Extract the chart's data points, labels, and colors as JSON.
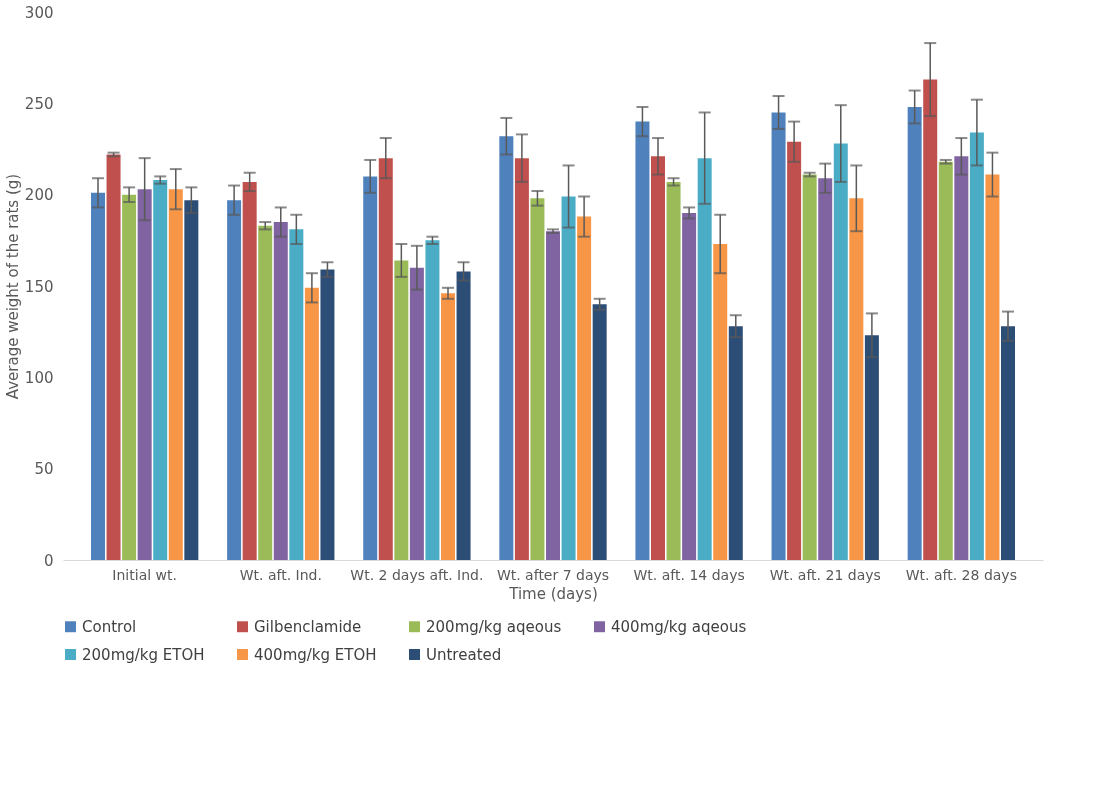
{
  "chart_data": {
    "type": "bar",
    "xlabel": "Time (days)",
    "ylabel": "Average weight of the rats (g)",
    "categories": [
      "Initial wt.",
      "Wt. aft. Ind.",
      "Wt. 2 days aft. Ind.",
      "Wt. after 7 days",
      "Wt. aft. 14 days",
      "Wt. aft. 21 days",
      "Wt. aft. 28 days"
    ],
    "ylim": [
      0,
      300
    ],
    "yticks": [
      0,
      50,
      100,
      150,
      200,
      250,
      300
    ],
    "grid": false,
    "legend": "bottom",
    "series": [
      {
        "name": "Control",
        "color": "#4f81bd",
        "values": [
          201,
          197,
          210,
          232,
          240,
          245,
          248
        ],
        "errors": [
          8,
          8,
          9,
          10,
          8,
          9,
          9
        ]
      },
      {
        "name": "Gilbenclamide",
        "color": "#c0504d",
        "values": [
          222,
          207,
          220,
          220,
          221,
          229,
          263
        ],
        "errors": [
          1,
          5,
          11,
          13,
          10,
          11,
          20
        ]
      },
      {
        "name": "200mg/kg aqeous",
        "color": "#9bbb59",
        "values": [
          200,
          183,
          164,
          198,
          207,
          211,
          218
        ],
        "errors": [
          4,
          2,
          9,
          4,
          2,
          1,
          1
        ]
      },
      {
        "name": "400mg/kg aqeous",
        "color": "#8064a2",
        "values": [
          203,
          185,
          160,
          180,
          190,
          209,
          221
        ],
        "errors": [
          17,
          8,
          12,
          1,
          3,
          8,
          10
        ]
      },
      {
        "name": "200mg/kg ETOH",
        "color": "#4bacc6",
        "values": [
          208,
          181,
          175,
          199,
          220,
          228,
          234
        ],
        "errors": [
          2,
          8,
          2,
          17,
          25,
          21,
          18
        ]
      },
      {
        "name": "400mg/kg ETOH",
        "color": "#f79646",
        "values": [
          203,
          149,
          146,
          188,
          173,
          198,
          211
        ],
        "errors": [
          11,
          8,
          3,
          11,
          16,
          18,
          12
        ]
      },
      {
        "name": "Untreated",
        "color": "#2c4d75",
        "values": [
          197,
          159,
          158,
          140,
          128,
          123,
          128
        ],
        "errors": [
          7,
          4,
          5,
          3,
          6,
          12,
          8
        ]
      }
    ]
  }
}
